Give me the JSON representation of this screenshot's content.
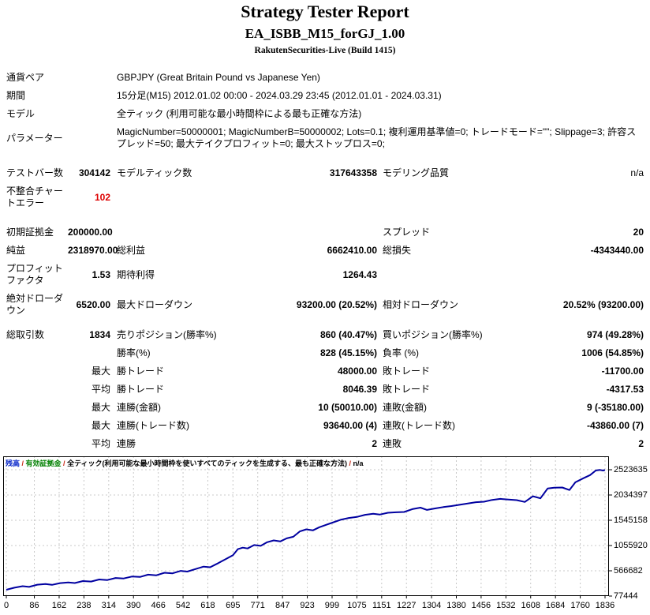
{
  "colors": {
    "alert_red": "#dd0000",
    "balance_blue": "#0020c8",
    "equity_green": "#008000",
    "separator_red": "#c82814",
    "curve_navy": "#0000a0",
    "grid_gray": "#c8c8c8"
  },
  "header": {
    "title": "Strategy Tester Report",
    "subtitle": "EA_ISBB_M15_forGJ_1.00",
    "server": "RakutenSecurities-Live (Build 1415)"
  },
  "sections": [
    {
      "name": "settings",
      "wide": true,
      "rows": [
        {
          "cells": [
            "通貨ペア",
            "GBPJPY (Great Britain Pound vs Japanese Yen)"
          ]
        },
        {
          "cells": [
            "期間",
            "15分足(M15) 2012.01.02 00:00 - 2024.03.29 23:45 (2012.01.01 - 2024.03.31)"
          ]
        },
        {
          "cells": [
            "モデル",
            "全ティック (利用可能な最小時間枠による最も正確な方法)"
          ]
        },
        {
          "cells": [
            "パラメーター",
            "MagicNumber=50000001; MagicNumberB=50000002; Lots=0.1; 複利運用基準値=0; トレードモード=\"\"; Slippage=3; 許容スプレッド=50; 最大テイクプロフィット=0; 最大ストップロス=0;"
          ]
        }
      ]
    },
    {
      "name": "quality",
      "rows": [
        {
          "cells": [
            "テストバー数",
            "304142",
            "モデルティック数",
            "317643358",
            "モデリング品質",
            "n/a"
          ]
        },
        {
          "cells": [
            "不整合チャートエラー",
            "102",
            "",
            "",
            "",
            ""
          ],
          "red": 1
        }
      ]
    },
    {
      "name": "results",
      "rows": [
        {
          "cells": [
            "初期証拠金",
            "200000.00",
            "",
            "",
            "スプレッド",
            "20"
          ]
        },
        {
          "cells": [
            "純益",
            "2318970.00",
            "総利益",
            "6662410.00",
            "総損失",
            "-4343440.00"
          ]
        },
        {
          "cells": [
            "プロフィットファクタ",
            "1.53",
            "期待利得",
            "1264.43",
            "",
            ""
          ]
        },
        {
          "cells": [
            "絶対ドローダウン",
            "6520.00",
            "最大ドローダウン",
            "93200.00 (20.52%)",
            "相対ドローダウン",
            "20.52% (93200.00)"
          ]
        }
      ]
    },
    {
      "name": "trades",
      "rows": [
        {
          "cells": [
            "総取引数",
            "1834",
            "売りポジション(勝率%)",
            "860 (40.47%)",
            "買いポジション(勝率%)",
            "974 (49.28%)"
          ]
        },
        {
          "cells": [
            "",
            "",
            "勝率(%)",
            "828 (45.15%)",
            "負率 (%)",
            "1006 (54.85%)"
          ]
        },
        {
          "cells": [
            "",
            "最大",
            "勝トレード",
            "48000.00",
            "敗トレード",
            "-11700.00"
          ]
        },
        {
          "cells": [
            "",
            "平均",
            "勝トレード",
            "8046.39",
            "敗トレード",
            "-4317.53"
          ]
        },
        {
          "cells": [
            "",
            "最大",
            "連勝(金額)",
            "10 (50010.00)",
            "連敗(金額)",
            "9 (-35180.00)"
          ]
        },
        {
          "cells": [
            "",
            "最大",
            "連勝(トレード数)",
            "93640.00 (4)",
            "連敗(トレード数)",
            "-43860.00 (7)"
          ]
        },
        {
          "cells": [
            "",
            "平均",
            "連勝",
            "2",
            "連敗",
            "2"
          ]
        }
      ]
    }
  ],
  "chart_data": {
    "type": "line",
    "legend": {
      "balance": "残高",
      "equity": "有効証拠金",
      "model": "全ティック(利用可能な最小時間枠を使いすべてのティックを生成する、最も正確な方法)",
      "quality": "n/a",
      "sep": " / "
    },
    "xlabel": "",
    "ylabel": "",
    "x_range": [
      0,
      1836
    ],
    "y_range": [
      77444,
      2523635
    ],
    "x_ticks": [
      0,
      86,
      162,
      238,
      314,
      390,
      466,
      542,
      618,
      695,
      771,
      847,
      923,
      999,
      1075,
      1151,
      1227,
      1304,
      1380,
      1456,
      1532,
      1608,
      1684,
      1760,
      1836
    ],
    "y_ticks": [
      2523635,
      2034397,
      1545158,
      1055920,
      566682,
      77444
    ],
    "grid_color": "#c8c8c8",
    "series": [
      {
        "name": "残高",
        "color": "#0000a0",
        "points": [
          [
            0,
            200000
          ],
          [
            25,
            240000
          ],
          [
            50,
            268000
          ],
          [
            70,
            255000
          ],
          [
            95,
            298000
          ],
          [
            120,
            312000
          ],
          [
            140,
            295000
          ],
          [
            165,
            328000
          ],
          [
            190,
            342000
          ],
          [
            210,
            330000
          ],
          [
            235,
            368000
          ],
          [
            260,
            358000
          ],
          [
            285,
            398000
          ],
          [
            310,
            388000
          ],
          [
            335,
            428000
          ],
          [
            360,
            418000
          ],
          [
            385,
            455000
          ],
          [
            410,
            448000
          ],
          [
            435,
            492000
          ],
          [
            460,
            480000
          ],
          [
            485,
            528000
          ],
          [
            510,
            518000
          ],
          [
            535,
            565000
          ],
          [
            555,
            552000
          ],
          [
            580,
            600000
          ],
          [
            605,
            648000
          ],
          [
            625,
            635000
          ],
          [
            650,
            715000
          ],
          [
            675,
            800000
          ],
          [
            695,
            870000
          ],
          [
            710,
            985000
          ],
          [
            725,
            1015000
          ],
          [
            740,
            1000000
          ],
          [
            760,
            1065000
          ],
          [
            780,
            1050000
          ],
          [
            800,
            1120000
          ],
          [
            820,
            1155000
          ],
          [
            840,
            1135000
          ],
          [
            860,
            1195000
          ],
          [
            880,
            1225000
          ],
          [
            900,
            1330000
          ],
          [
            920,
            1370000
          ],
          [
            940,
            1350000
          ],
          [
            960,
            1410000
          ],
          [
            978,
            1450000
          ],
          [
            1000,
            1500000
          ],
          [
            1025,
            1555000
          ],
          [
            1050,
            1590000
          ],
          [
            1075,
            1610000
          ],
          [
            1100,
            1650000
          ],
          [
            1125,
            1670000
          ],
          [
            1145,
            1655000
          ],
          [
            1170,
            1690000
          ],
          [
            1195,
            1700000
          ],
          [
            1220,
            1705000
          ],
          [
            1245,
            1760000
          ],
          [
            1270,
            1790000
          ],
          [
            1290,
            1745000
          ],
          [
            1315,
            1775000
          ],
          [
            1340,
            1800000
          ],
          [
            1365,
            1820000
          ],
          [
            1390,
            1845000
          ],
          [
            1415,
            1870000
          ],
          [
            1440,
            1895000
          ],
          [
            1465,
            1905000
          ],
          [
            1490,
            1940000
          ],
          [
            1515,
            1960000
          ],
          [
            1540,
            1945000
          ],
          [
            1565,
            1935000
          ],
          [
            1590,
            1900000
          ],
          [
            1615,
            2010000
          ],
          [
            1638,
            1970000
          ],
          [
            1660,
            2160000
          ],
          [
            1680,
            2175000
          ],
          [
            1705,
            2180000
          ],
          [
            1727,
            2130000
          ],
          [
            1745,
            2280000
          ],
          [
            1770,
            2360000
          ],
          [
            1790,
            2420000
          ],
          [
            1808,
            2510000
          ],
          [
            1820,
            2520000
          ],
          [
            1830,
            2508000
          ],
          [
            1836,
            2518970
          ]
        ]
      }
    ]
  }
}
